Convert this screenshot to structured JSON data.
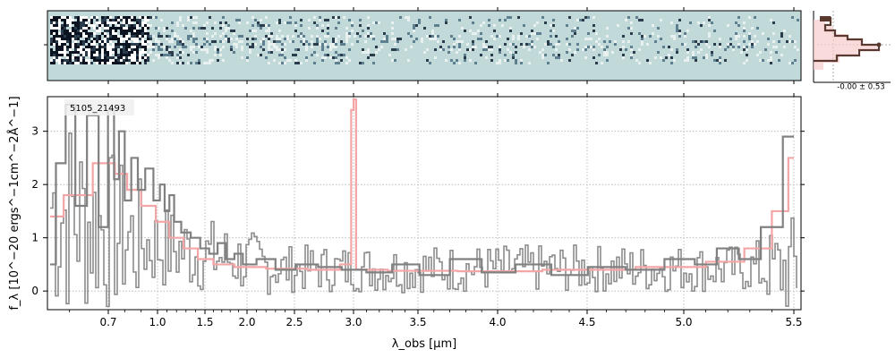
{
  "chart_data": {
    "type": "line",
    "object_id": "5105_21493",
    "xlabel": "λ_obs [μm]",
    "ylabel": "f_λ [10^−20 ergs^−1cm^−2Å^−1]",
    "x_ticks": [
      0.7,
      1.0,
      1.5,
      2.0,
      2.5,
      3.0,
      3.5,
      4.0,
      4.5,
      5.0,
      5.5
    ],
    "x_tick_labels": [
      "0.7",
      "1.0",
      "1.5",
      "2.0",
      "2.5",
      "3.0",
      "3.5",
      "4.0",
      "4.5",
      "5.0",
      "5.5"
    ],
    "y_ticks": [
      0,
      1,
      2,
      3
    ],
    "y_tick_labels": [
      "0",
      "1",
      "2",
      "3"
    ],
    "ylim": [
      -0.35,
      3.65
    ],
    "grid": true,
    "series": [
      {
        "role": "observed flux",
        "color": "#808080",
        "points": [
          [
            0.55,
            0.5
          ],
          [
            0.58,
            2.4
          ],
          [
            0.6,
            3.5
          ],
          [
            0.63,
            1.6
          ],
          [
            0.66,
            3.3
          ],
          [
            0.69,
            1.2
          ],
          [
            0.72,
            3.4
          ],
          [
            0.75,
            2.1
          ],
          [
            0.78,
            3.0
          ],
          [
            0.82,
            1.7
          ],
          [
            0.86,
            2.5
          ],
          [
            0.9,
            1.9
          ],
          [
            0.95,
            2.3
          ],
          [
            1.0,
            1.7
          ],
          [
            1.05,
            2.0
          ],
          [
            1.1,
            1.5
          ],
          [
            1.15,
            1.8
          ],
          [
            1.2,
            1.3
          ],
          [
            1.3,
            1.1
          ],
          [
            1.4,
            1.0
          ],
          [
            1.5,
            0.8
          ],
          [
            1.6,
            0.7
          ],
          [
            1.7,
            0.9
          ],
          [
            1.8,
            0.6
          ],
          [
            1.9,
            0.7
          ],
          [
            2.0,
            0.5
          ],
          [
            2.2,
            0.6
          ],
          [
            2.4,
            0.4
          ],
          [
            2.6,
            0.5
          ],
          [
            2.8,
            0.45
          ],
          [
            3.0,
            0.4
          ],
          [
            3.2,
            0.35
          ],
          [
            3.4,
            0.5
          ],
          [
            3.6,
            0.3
          ],
          [
            3.8,
            0.6
          ],
          [
            4.0,
            0.35
          ],
          [
            4.2,
            0.5
          ],
          [
            4.4,
            0.3
          ],
          [
            4.6,
            0.45
          ],
          [
            4.8,
            0.4
          ],
          [
            5.0,
            0.6
          ],
          [
            5.1,
            0.5
          ],
          [
            5.2,
            0.8
          ],
          [
            5.3,
            0.6
          ],
          [
            5.4,
            1.2
          ],
          [
            5.5,
            2.9
          ]
        ]
      },
      {
        "role": "model",
        "color": "#f4a6a6",
        "points": [
          [
            0.55,
            1.4
          ],
          [
            0.62,
            1.8
          ],
          [
            0.7,
            2.4
          ],
          [
            0.78,
            2.2
          ],
          [
            0.85,
            1.9
          ],
          [
            0.95,
            1.6
          ],
          [
            1.05,
            1.3
          ],
          [
            1.2,
            1.0
          ],
          [
            1.35,
            0.8
          ],
          [
            1.5,
            0.6
          ],
          [
            1.7,
            0.5
          ],
          [
            2.0,
            0.45
          ],
          [
            2.4,
            0.42
          ],
          [
            2.8,
            0.4
          ],
          [
            2.97,
            0.5
          ],
          [
            2.99,
            3.4
          ],
          [
            3.01,
            3.6
          ],
          [
            3.03,
            0.4
          ],
          [
            3.5,
            0.38
          ],
          [
            4.0,
            0.37
          ],
          [
            4.5,
            0.4
          ],
          [
            5.0,
            0.45
          ],
          [
            5.2,
            0.55
          ],
          [
            5.35,
            0.8
          ],
          [
            5.45,
            1.5
          ],
          [
            5.5,
            2.5
          ]
        ]
      }
    ],
    "histogram_label": "-0.00 ± 0.53",
    "colors": {
      "flux": "#808080",
      "model": "#f4a6a6",
      "spectrum_2d_bg": "#c2d9d9",
      "histogram": "#5a3a30"
    }
  }
}
